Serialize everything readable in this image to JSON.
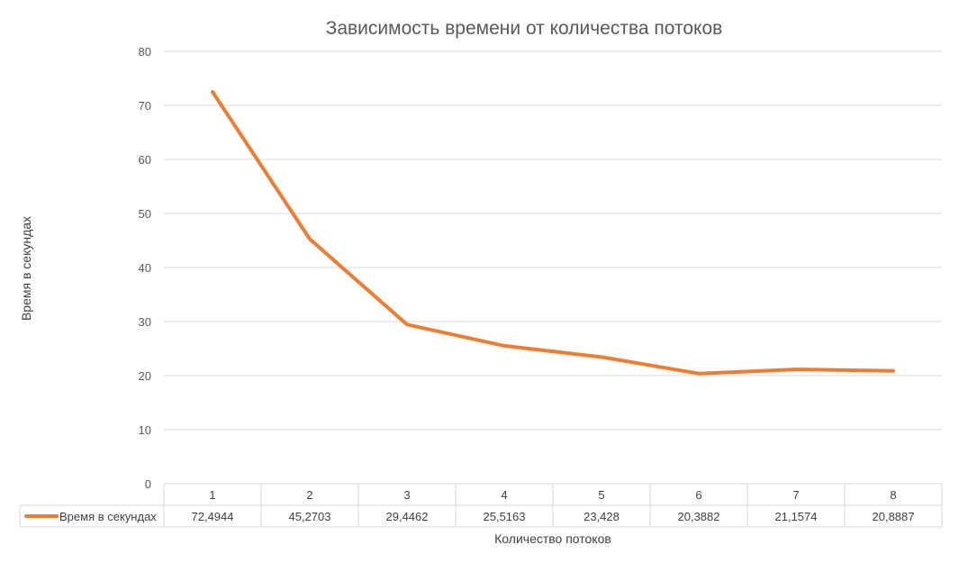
{
  "chart_data": {
    "type": "line",
    "title": "Зависимость времени от количества потоков",
    "xlabel": "Количество потоков",
    "ylabel": "Время в секундах",
    "categories": [
      "1",
      "2",
      "3",
      "4",
      "5",
      "6",
      "7",
      "8"
    ],
    "series": [
      {
        "name": "Время в секундах",
        "values": [
          72.4944,
          45.2703,
          29.4462,
          25.5163,
          23.428,
          20.3882,
          21.1574,
          20.8887
        ],
        "labels": [
          "72,4944",
          "45,2703",
          "29,4462",
          "25,5163",
          "23,428",
          "20,3882",
          "21,1574",
          "20,8887"
        ],
        "color": "#ED7D31"
      }
    ],
    "ylim": [
      0,
      80
    ],
    "yticks": [
      0,
      10,
      20,
      30,
      40,
      50,
      60,
      70,
      80
    ],
    "grid": true,
    "legend": "data table"
  }
}
